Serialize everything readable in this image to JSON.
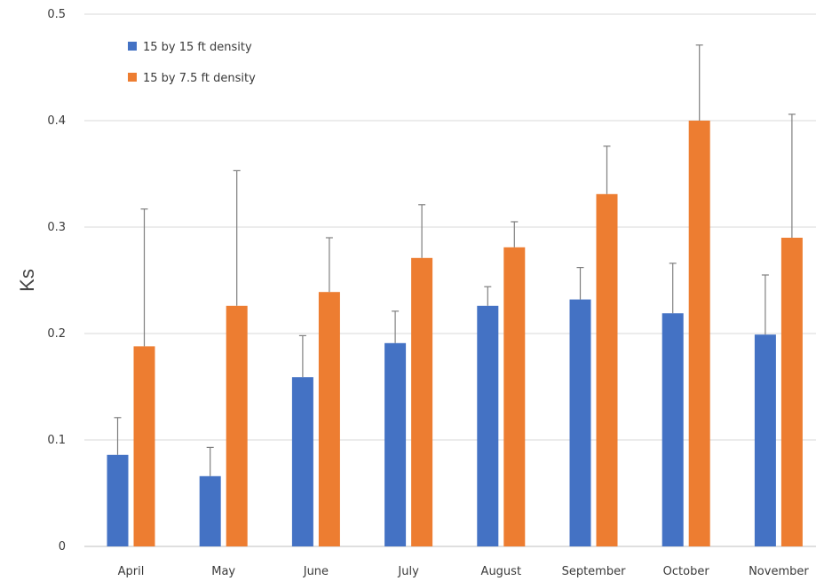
{
  "chart_data": {
    "type": "bar",
    "title": "",
    "xlabel": "",
    "ylabel": "Ks",
    "ylim": [
      0,
      0.5
    ],
    "yticks": [
      0,
      0.1,
      0.2,
      0.3,
      0.4,
      0.5
    ],
    "ytick_labels": [
      "0",
      "0.1",
      "0.2",
      "0.3",
      "0.4",
      "0.5"
    ],
    "grid": true,
    "legend_position": "top-left",
    "categories": [
      "April",
      "May",
      "June",
      "July",
      "August",
      "September",
      "October",
      "November"
    ],
    "series": [
      {
        "name": "15 by 15 ft density",
        "color": "#4472C4",
        "values": [
          0.086,
          0.066,
          0.159,
          0.191,
          0.226,
          0.232,
          0.219,
          0.199
        ],
        "error_upper": [
          0.121,
          0.093,
          0.198,
          0.221,
          0.244,
          0.262,
          0.266,
          0.255
        ]
      },
      {
        "name": "15 by 7.5 ft density",
        "color": "#ED7D31",
        "values": [
          0.188,
          0.226,
          0.239,
          0.271,
          0.281,
          0.331,
          0.4,
          0.29
        ],
        "error_upper": [
          0.317,
          0.353,
          0.29,
          0.321,
          0.305,
          0.376,
          0.471,
          0.406
        ]
      }
    ]
  }
}
